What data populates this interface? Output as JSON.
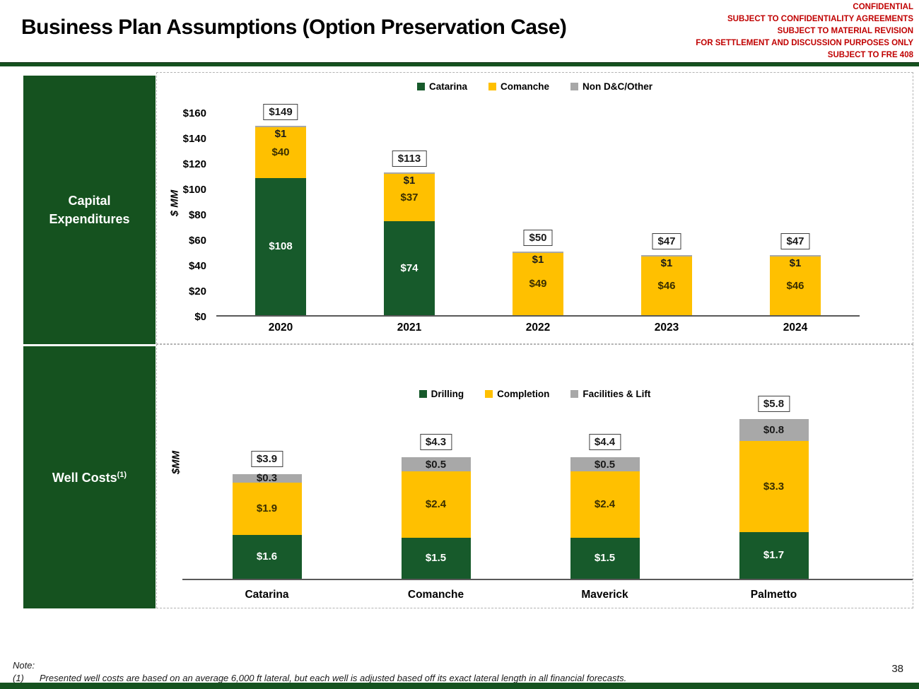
{
  "header": {
    "title": "Business Plan Assumptions (Option Preservation Case)",
    "confidential_lines": [
      "CONFIDENTIAL",
      "SUBJECT TO CONFIDENTIALITY AGREEMENTS",
      "SUBJECT TO MATERIAL REVISION",
      "FOR SETTLEMENT AND DISCUSSION PURPOSES ONLY",
      "SUBJECT TO FRE 408"
    ]
  },
  "sidebar": {
    "capex_label": "Capital Expenditures",
    "well_costs_label": "Well Costs",
    "well_costs_superscript": "(1)"
  },
  "colors": {
    "dark_green": "#175A2B",
    "yellow": "#FFC000",
    "gray": "#A8A8A8",
    "sidebar_green": "#15521F",
    "confidential_red": "#C00000"
  },
  "chart_data": [
    {
      "type": "bar",
      "stacked": true,
      "section": "Capital Expenditures",
      "ylabel": "$ MM",
      "ylim": [
        0,
        160
      ],
      "yticks": [
        "$0",
        "$20",
        "$40",
        "$60",
        "$80",
        "$100",
        "$120",
        "$140",
        "$160"
      ],
      "legend_position": "top",
      "grid": false,
      "categories": [
        "2020",
        "2021",
        "2022",
        "2023",
        "2024"
      ],
      "series": [
        {
          "name": "Catarina",
          "color": "#175A2B",
          "label_color": "#FFFFFF",
          "values": [
            108,
            74,
            0,
            0,
            0
          ],
          "labels": [
            "$108",
            "$74",
            "",
            "",
            ""
          ]
        },
        {
          "name": "Comanche",
          "color": "#FFC000",
          "label_color": "#3A2E00",
          "values": [
            40,
            37,
            49,
            46,
            46
          ],
          "labels": [
            "$40",
            "$37",
            "$49",
            "$46",
            "$46"
          ]
        },
        {
          "name": "Non D&C/Other",
          "color": "#A8A8A8",
          "label_color": "#1A1A1A",
          "values": [
            1,
            1,
            1,
            1,
            1
          ],
          "labels": [
            "$1",
            "$1",
            "$1",
            "$1",
            "$1"
          ]
        }
      ],
      "totals": [
        "$149",
        "$113",
        "$50",
        "$47",
        "$47"
      ]
    },
    {
      "type": "bar",
      "stacked": true,
      "section": "Well Costs (1)",
      "ylabel": "$MM",
      "ylim": [
        0,
        6.4
      ],
      "yticks": [],
      "legend_position": "top",
      "grid": false,
      "categories": [
        "Catarina",
        "Comanche",
        "Maverick",
        "Palmetto"
      ],
      "series": [
        {
          "name": "Drilling",
          "color": "#175A2B",
          "label_color": "#FFFFFF",
          "values": [
            1.6,
            1.5,
            1.5,
            1.7
          ],
          "labels": [
            "$1.6",
            "$1.5",
            "$1.5",
            "$1.7"
          ]
        },
        {
          "name": "Completion",
          "color": "#FFC000",
          "label_color": "#3A2E00",
          "values": [
            1.9,
            2.4,
            2.4,
            3.3
          ],
          "labels": [
            "$1.9",
            "$2.4",
            "$2.4",
            "$3.3"
          ]
        },
        {
          "name": "Facilities & Lift",
          "color": "#A8A8A8",
          "label_color": "#1A1A1A",
          "values": [
            0.3,
            0.5,
            0.5,
            0.8
          ],
          "labels": [
            "$0.3",
            "$0.5",
            "$0.5",
            "$0.8"
          ]
        }
      ],
      "totals": [
        "$3.9",
        "$4.3",
        "$4.4",
        "$5.8"
      ]
    }
  ],
  "footer": {
    "note_label": "Note:",
    "note_marker": "(1)",
    "note_body": "Presented well costs are based on an average 6,000 ft lateral, but each well is adjusted based off its exact lateral length in all financial forecasts.",
    "page_number": "38"
  }
}
